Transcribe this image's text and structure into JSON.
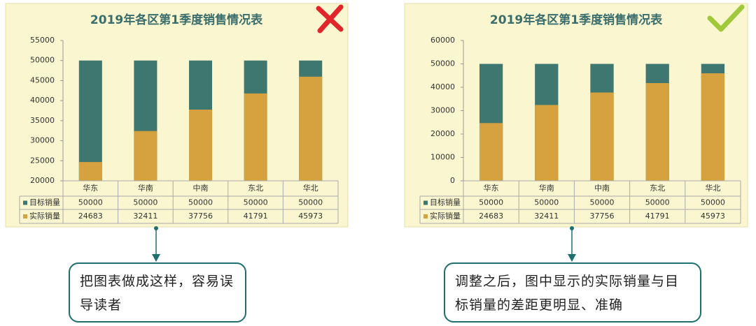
{
  "chart_data": [
    {
      "type": "bar",
      "title": "2019年各区第1季度销售情况表",
      "categories": [
        "华东",
        "华南",
        "中南",
        "东北",
        "华北"
      ],
      "series": [
        {
          "name": "目标销量",
          "color": "#3e7670",
          "values": [
            50000,
            50000,
            50000,
            50000,
            50000
          ]
        },
        {
          "name": "实际销量",
          "color": "#d6a23f",
          "values": [
            24683,
            32411,
            37756,
            41791,
            45973
          ]
        }
      ],
      "ylim": [
        20000,
        55000
      ],
      "yticks": [
        20000,
        25000,
        30000,
        35000,
        40000,
        45000,
        50000,
        55000
      ],
      "grid": false
    },
    {
      "type": "bar",
      "title": "2019年各区第1季度销售情况表",
      "categories": [
        "华东",
        "华南",
        "中南",
        "东北",
        "华北"
      ],
      "series": [
        {
          "name": "目标销量",
          "color": "#3e7670",
          "values": [
            50000,
            50000,
            50000,
            50000,
            50000
          ]
        },
        {
          "name": "实际销量",
          "color": "#d6a23f",
          "values": [
            24683,
            32411,
            37756,
            41791,
            45973
          ]
        }
      ],
      "ylim": [
        0,
        60000
      ],
      "yticks": [
        0,
        10000,
        20000,
        30000,
        40000,
        50000,
        60000
      ],
      "grid": false
    }
  ],
  "captions": [
    "把图表做成这样，容易误导读者",
    "调整之后，图中显示的实际销量与目标销量的差距更明显、准确"
  ]
}
